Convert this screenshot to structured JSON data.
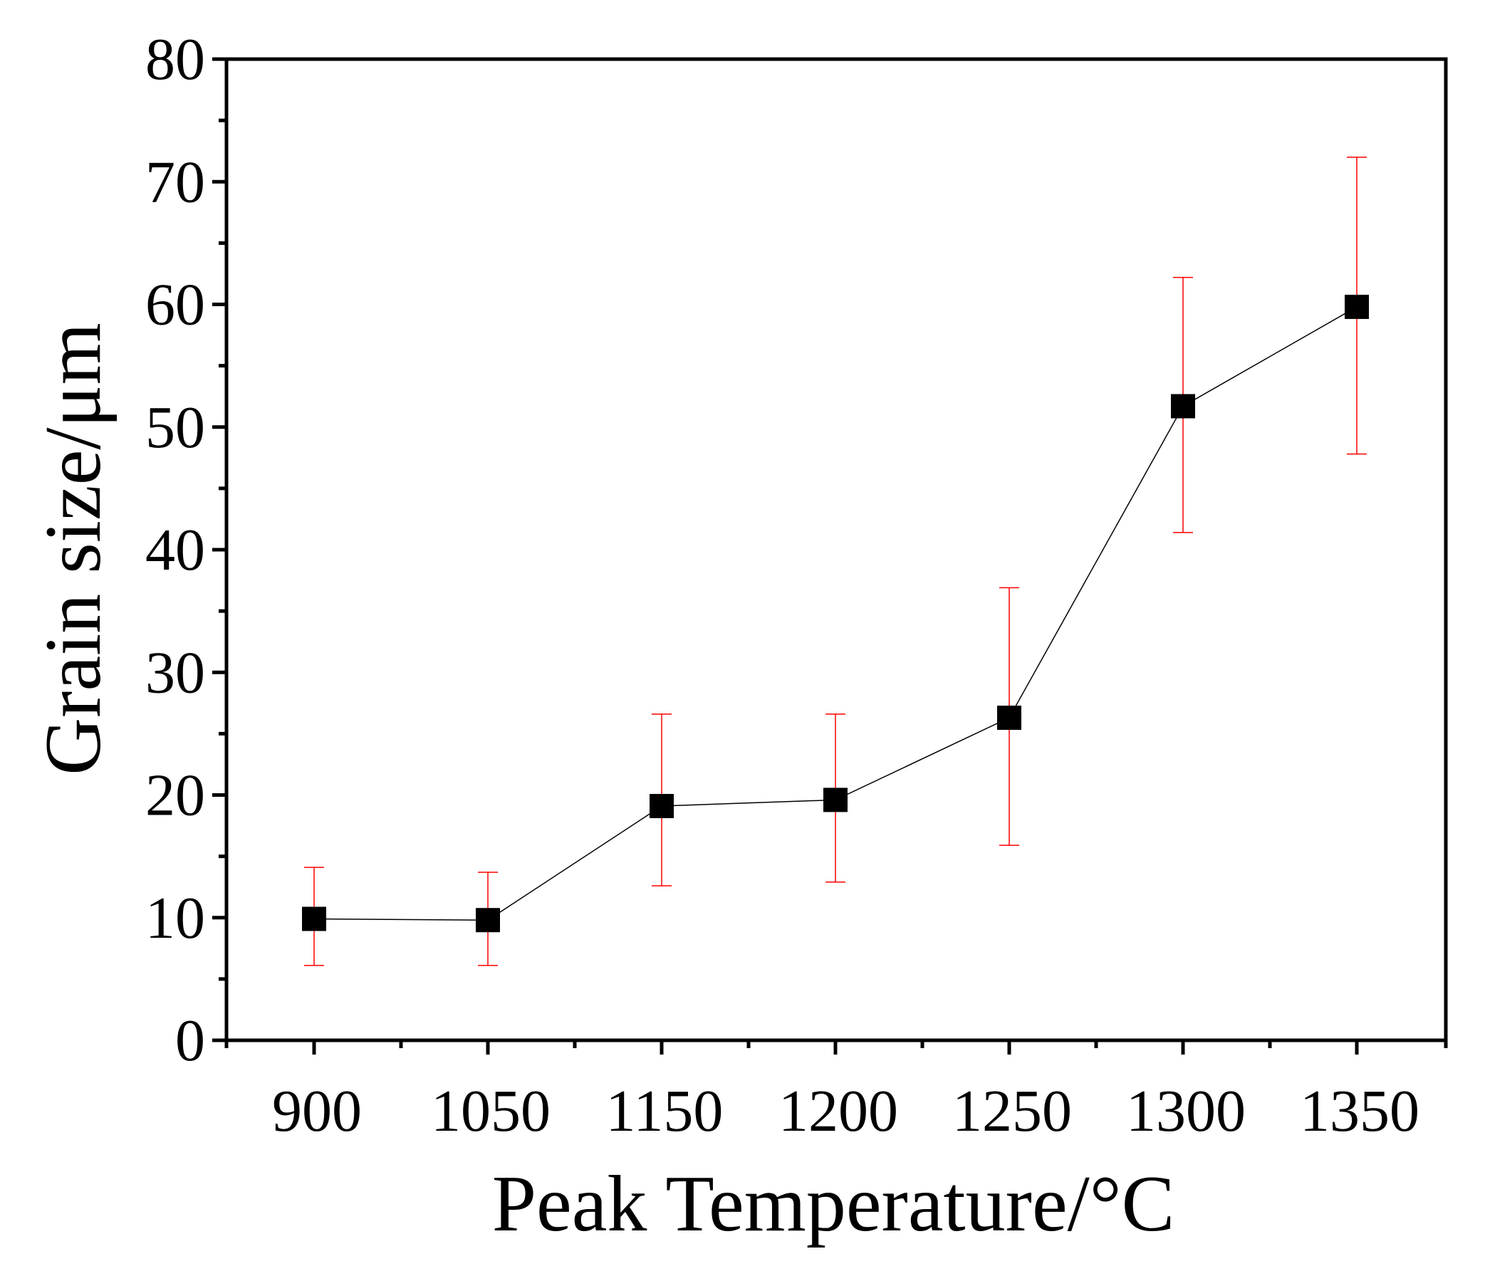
{
  "chart_data": {
    "type": "line",
    "title": "",
    "xlabel": "Peak Temperature/°C",
    "ylabel": "Grain size/μm",
    "categories": [
      "900",
      "1050",
      "1150",
      "1200",
      "1250",
      "1300",
      "1350"
    ],
    "ylim": [
      0,
      80
    ],
    "yticks": [
      "0",
      "10",
      "20",
      "30",
      "40",
      "50",
      "60",
      "70",
      "80"
    ],
    "grid": false,
    "legend": "none",
    "series": [
      {
        "name": "Grain size",
        "marker": "square",
        "line_color": "#000000",
        "marker_color": "#000000",
        "errorbar_color": "#ff0000",
        "values": [
          9.9,
          9.8,
          19.1,
          19.6,
          26.3,
          51.7,
          59.8
        ],
        "error_upper": [
          14.1,
          13.7,
          26.6,
          26.6,
          36.9,
          62.2,
          72.0
        ],
        "error_lower": [
          6.1,
          6.1,
          12.6,
          12.9,
          15.9,
          41.4,
          47.8
        ]
      }
    ]
  },
  "colors": {
    "axis": "#000000",
    "line": "#000000",
    "marker": "#000000",
    "errorbar": "#ff0000"
  }
}
